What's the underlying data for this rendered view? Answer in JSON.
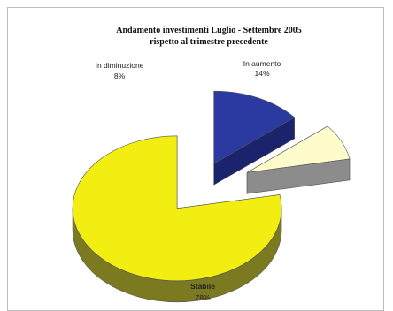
{
  "chart_data": {
    "type": "pie",
    "style": "3d-exploded",
    "title_line1": "Andamento investimenti Luglio - Settembre 2005",
    "title_line2": "rispetto al trimestre precedente",
    "slices": [
      {
        "label": "In aumento",
        "value": 14,
        "pct_text": "14%",
        "color": "#2b3aa0",
        "side_color": "#1a236b"
      },
      {
        "label": "In diminuzione",
        "value": 8,
        "pct_text": "8%",
        "color": "#fffccc",
        "side_color": "#8c8c8c"
      },
      {
        "label": "Stabile",
        "value": 78,
        "pct_text": "78%",
        "color": "#f3ee12",
        "side_color": "#7b7a21"
      }
    ]
  }
}
